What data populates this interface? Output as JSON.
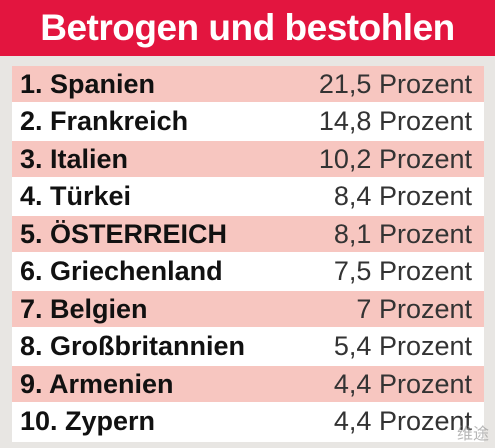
{
  "chart_data": {
    "type": "table",
    "title": "Betrogen und bestohlen",
    "rows": [
      {
        "label": "1. Spanien",
        "value": 21.5,
        "value_text": "21,5 Prozent"
      },
      {
        "label": "2. Frankreich",
        "value": 14.8,
        "value_text": "14,8 Prozent"
      },
      {
        "label": "3. Italien",
        "value": 10.2,
        "value_text": "10,2 Prozent"
      },
      {
        "label": "4. Türkei",
        "value": 8.4,
        "value_text": "8,4 Prozent"
      },
      {
        "label": "5. ÖSTERREICH",
        "value": 8.1,
        "value_text": "8,1 Prozent"
      },
      {
        "label": "6. Griechenland",
        "value": 7.5,
        "value_text": "7,5 Prozent"
      },
      {
        "label": "7. Belgien",
        "value": 7,
        "value_text": "7 Prozent"
      },
      {
        "label": "8. Großbritannien",
        "value": 5.4,
        "value_text": "5,4 Prozent"
      },
      {
        "label": "9. Armenien",
        "value": 4.4,
        "value_text": "4,4 Prozent"
      },
      {
        "label": "10. Zypern",
        "value": 4.4,
        "value_text": "4,4 Prozent"
      }
    ]
  },
  "watermark": "维途",
  "colors": {
    "header_background": "#e3153f",
    "title_text": "#ffffff",
    "shaded_row": "#f7c6c0",
    "plain_row": "#ffffff",
    "page_background": "#e8e6e3"
  }
}
